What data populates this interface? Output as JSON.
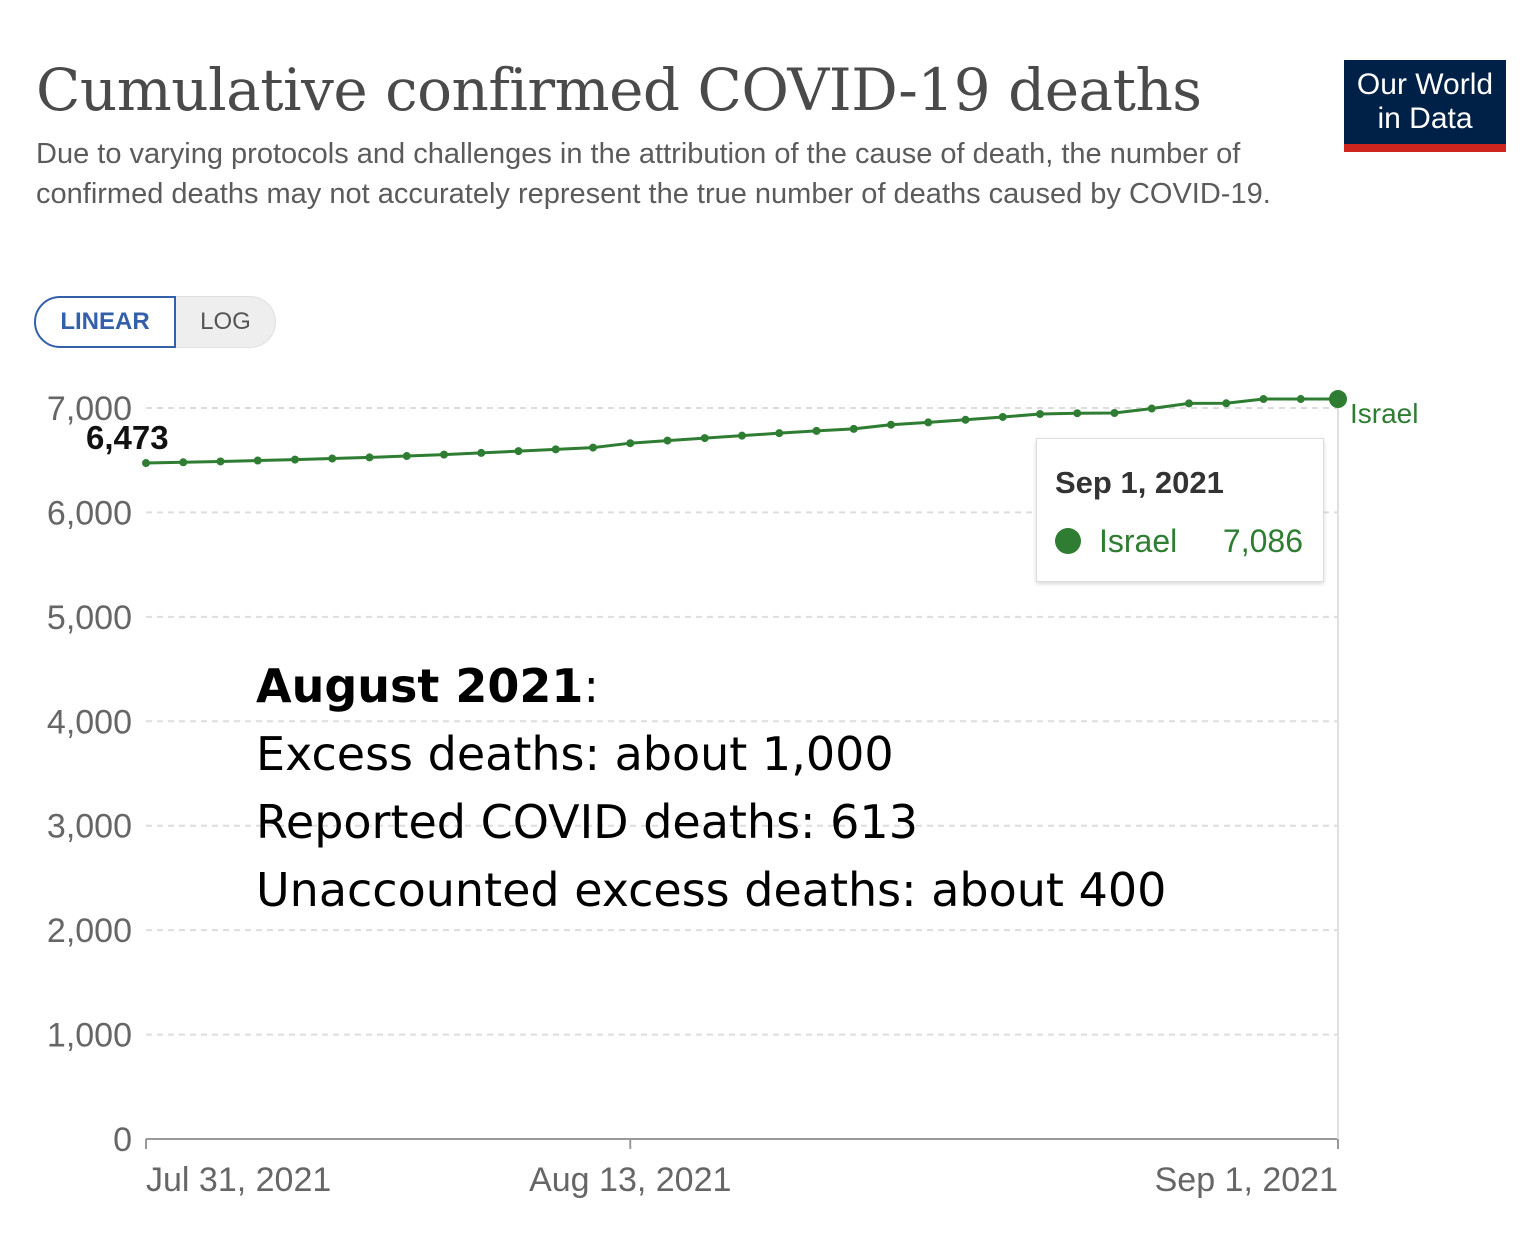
{
  "header": {
    "title": "Cumulative confirmed COVID-19 deaths",
    "subtitle": "Due to varying protocols and challenges in the attribution of the cause of death, the number of confirmed deaths may not accurately represent the true number of deaths caused by COVID-19.",
    "logo_line1": "Our World",
    "logo_line2": "in Data"
  },
  "scale_toggle": {
    "linear_label": "LINEAR",
    "log_label": "LOG",
    "selected": "LINEAR"
  },
  "colors": {
    "series": "#2e7d32",
    "grid": "#dddddd",
    "axis": "#999999",
    "logo_bg": "#002147",
    "logo_accent": "#ce261e"
  },
  "tooltip": {
    "date": "Sep 1, 2021",
    "series": "Israel",
    "value": "7,086"
  },
  "annotation": {
    "heading": "August 2021",
    "heading_suffix": ":",
    "line1": "Excess deaths: about 1,000",
    "line2": "Reported COVID deaths: 613",
    "line3": "Unaccounted excess deaths: about 400"
  },
  "chart_data": {
    "type": "line",
    "title": "Cumulative confirmed COVID-19 deaths",
    "xlabel": "",
    "ylabel": "",
    "ylim": [
      0,
      7000
    ],
    "yticks": [
      0,
      1000,
      2000,
      3000,
      4000,
      5000,
      6000,
      7000
    ],
    "ytick_labels": [
      "0",
      "1,000",
      "2,000",
      "3,000",
      "4,000",
      "5,000",
      "6,000",
      "7,000"
    ],
    "xticks": [
      0,
      13,
      32
    ],
    "xtick_labels": [
      "Jul 31, 2021",
      "Aug 13, 2021",
      "Sep 1, 2021"
    ],
    "start_label": "6,473",
    "series": [
      {
        "name": "Israel",
        "x": [
          0,
          1,
          2,
          3,
          4,
          5,
          6,
          7,
          8,
          9,
          10,
          11,
          12,
          13,
          14,
          15,
          16,
          17,
          18,
          19,
          20,
          21,
          22,
          23,
          24,
          25,
          26,
          27,
          28,
          29,
          30,
          31,
          32
        ],
        "values": [
          6473,
          6480,
          6488,
          6497,
          6506,
          6516,
          6527,
          6540,
          6554,
          6570,
          6587,
          6604,
          6621,
          6663,
          6688,
          6712,
          6735,
          6759,
          6781,
          6800,
          6840,
          6862,
          6887,
          6914,
          6942,
          6950,
          6952,
          6995,
          7044,
          7045,
          7086,
          7086,
          7086
        ]
      }
    ],
    "grid": true,
    "legend": "end-of-line label"
  }
}
